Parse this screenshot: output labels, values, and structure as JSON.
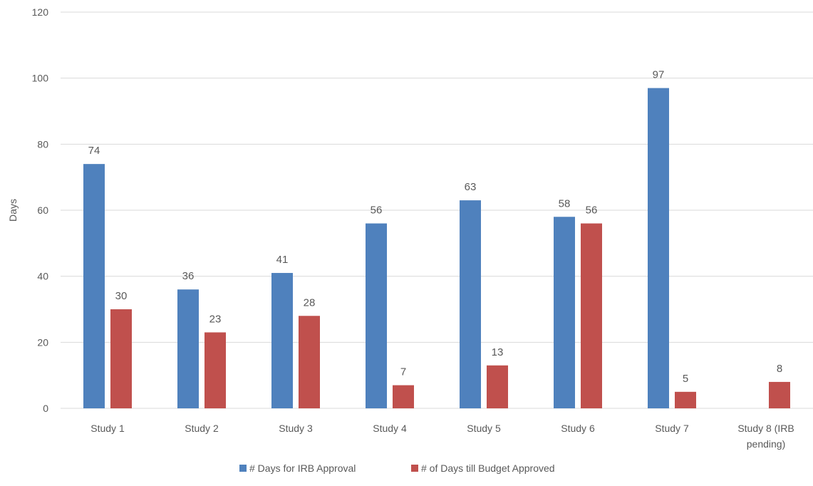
{
  "chart_data": {
    "type": "bar",
    "title": "",
    "xlabel": "",
    "ylabel": "Days",
    "ylim": [
      0,
      120
    ],
    "yticks": [
      "0",
      "20",
      "40",
      "60",
      "80",
      "100",
      "120"
    ],
    "grid": true,
    "legend_position": "bottom",
    "categories": [
      [
        "Study 1"
      ],
      [
        "Study 2"
      ],
      [
        "Study 3"
      ],
      [
        "Study 4"
      ],
      [
        "Study 5"
      ],
      [
        "Study 6"
      ],
      [
        "Study 7"
      ],
      [
        "Study 8 (IRB",
        "pending)"
      ]
    ],
    "series": [
      {
        "name": "# Days for IRB Approval",
        "color": "#4f81bd",
        "values": [
          74,
          36,
          41,
          56,
          63,
          58,
          97,
          null
        ]
      },
      {
        "name": "# of Days till Budget Approved",
        "color": "#c0504d",
        "values": [
          30,
          23,
          28,
          7,
          13,
          56,
          5,
          8
        ]
      }
    ]
  }
}
